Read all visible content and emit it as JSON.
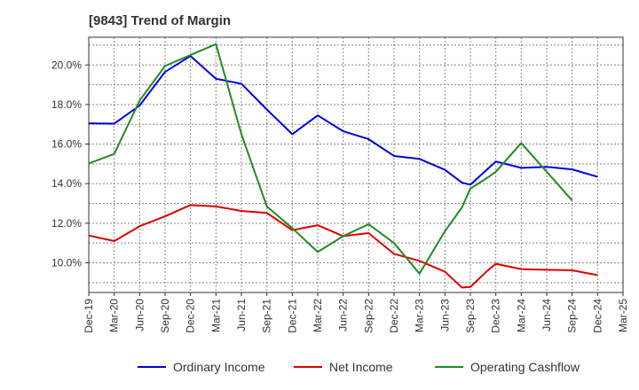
{
  "chart_data": {
    "type": "line",
    "title": "[9843]  Trend of Margin",
    "xlabel": "",
    "ylabel": "",
    "x": [
      "Dec-19",
      "Mar-20",
      "Jun-20",
      "Sep-20",
      "Dec-20",
      "Mar-21",
      "Jun-21",
      "Sep-21",
      "Dec-21",
      "Mar-22",
      "Jun-22",
      "Sep-22",
      "Dec-22",
      "Mar-23",
      "Jun-23",
      "Sep-23",
      "Dec-23",
      "Mar-24",
      "Jun-24",
      "Sep-24",
      "Dec-24",
      "Mar-25"
    ],
    "ylim": [
      8.5,
      21.4
    ],
    "yticks": [
      10,
      12,
      14,
      16,
      18,
      20
    ],
    "ytick_labels": [
      "10.0%",
      "12.0%",
      "14.0%",
      "16.0%",
      "18.0%",
      "20.0%"
    ],
    "grid": true,
    "legend_position": "bottom",
    "series": [
      {
        "name": "Ordinary Income",
        "color": "#0000dd",
        "points": [
          {
            "x": 0,
            "y": 17.05
          },
          {
            "x": 1,
            "y": 17.03
          },
          {
            "x": 2,
            "y": 17.95
          },
          {
            "x": 3,
            "y": 19.65
          },
          {
            "x": 4,
            "y": 20.45
          },
          {
            "x": 5,
            "y": 19.3
          },
          {
            "x": 6,
            "y": 19.05
          },
          {
            "x": 7,
            "y": 17.75
          },
          {
            "x": 8,
            "y": 16.5
          },
          {
            "x": 9,
            "y": 17.45
          },
          {
            "x": 10,
            "y": 16.65
          },
          {
            "x": 11,
            "y": 16.25
          },
          {
            "x": 12,
            "y": 15.4
          },
          {
            "x": 13,
            "y": 15.25
          },
          {
            "x": 14,
            "y": 14.7
          },
          {
            "x": 14.67,
            "y": 14.05
          },
          {
            "x": 15,
            "y": 13.95
          },
          {
            "x": 16,
            "y": 15.12
          },
          {
            "x": 17,
            "y": 14.8
          },
          {
            "x": 18,
            "y": 14.85
          },
          {
            "x": 19,
            "y": 14.72
          },
          {
            "x": 20,
            "y": 14.35
          }
        ]
      },
      {
        "name": "Net Income",
        "color": "#dd0000",
        "points": [
          {
            "x": 0,
            "y": 11.38
          },
          {
            "x": 1,
            "y": 11.1
          },
          {
            "x": 2,
            "y": 11.85
          },
          {
            "x": 3,
            "y": 12.35
          },
          {
            "x": 4,
            "y": 12.92
          },
          {
            "x": 5,
            "y": 12.85
          },
          {
            "x": 6,
            "y": 12.62
          },
          {
            "x": 7,
            "y": 12.52
          },
          {
            "x": 8,
            "y": 11.65
          },
          {
            "x": 9,
            "y": 11.9
          },
          {
            "x": 10,
            "y": 11.35
          },
          {
            "x": 11,
            "y": 11.5
          },
          {
            "x": 12,
            "y": 10.45
          },
          {
            "x": 13,
            "y": 10.1
          },
          {
            "x": 14,
            "y": 9.55
          },
          {
            "x": 14.67,
            "y": 8.75
          },
          {
            "x": 15,
            "y": 8.78
          },
          {
            "x": 15.67,
            "y": 9.6
          },
          {
            "x": 16,
            "y": 9.95
          },
          {
            "x": 17,
            "y": 9.68
          },
          {
            "x": 18,
            "y": 9.65
          },
          {
            "x": 19,
            "y": 9.62
          },
          {
            "x": 20,
            "y": 9.38
          }
        ]
      },
      {
        "name": "Operating Cashflow",
        "color": "#228b22",
        "points": [
          {
            "x": 0,
            "y": 15.02
          },
          {
            "x": 1,
            "y": 15.5
          },
          {
            "x": 2,
            "y": 18.2
          },
          {
            "x": 3,
            "y": 19.95
          },
          {
            "x": 4,
            "y": 20.5
          },
          {
            "x": 5,
            "y": 21.05
          },
          {
            "x": 6,
            "y": 16.5
          },
          {
            "x": 7,
            "y": 12.85
          },
          {
            "x": 8,
            "y": 11.75
          },
          {
            "x": 9,
            "y": 10.55
          },
          {
            "x": 10,
            "y": 11.35
          },
          {
            "x": 11,
            "y": 11.95
          },
          {
            "x": 12,
            "y": 11.0
          },
          {
            "x": 13,
            "y": 9.45
          },
          {
            "x": 14,
            "y": 11.6
          },
          {
            "x": 14.67,
            "y": 12.8
          },
          {
            "x": 15,
            "y": 13.75
          },
          {
            "x": 15.67,
            "y": 14.3
          },
          {
            "x": 16,
            "y": 14.6
          },
          {
            "x": 17,
            "y": 16.05
          },
          {
            "x": 18,
            "y": 14.6
          },
          {
            "x": 19,
            "y": 13.15
          }
        ]
      }
    ]
  }
}
